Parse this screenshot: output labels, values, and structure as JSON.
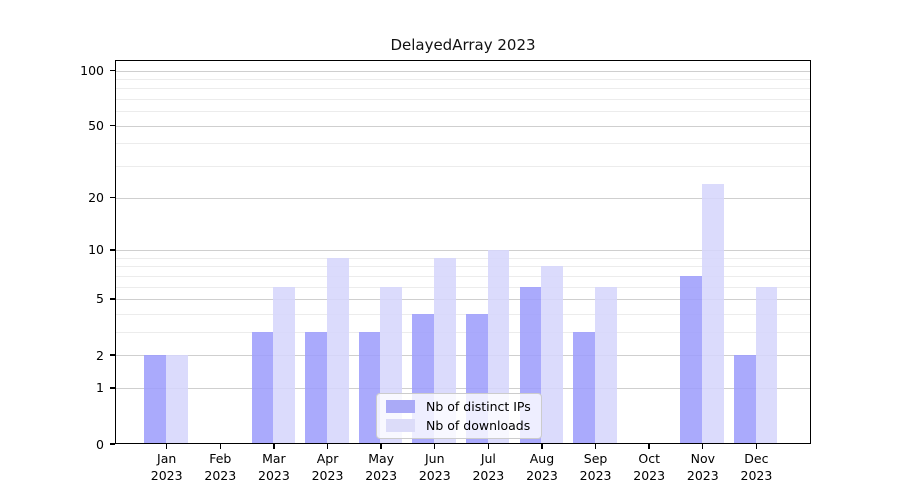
{
  "chart_data": {
    "type": "bar",
    "title": "DelayedArray 2023",
    "scale": "log1p",
    "categories": [
      "Jan",
      "Feb",
      "Mar",
      "Apr",
      "May",
      "Jun",
      "Jul",
      "Aug",
      "Sep",
      "Oct",
      "Nov",
      "Dec"
    ],
    "year_label": "2023",
    "series": [
      {
        "name": "Nb of distinct IPs",
        "values": [
          2,
          0,
          3,
          3,
          3,
          4,
          4,
          6,
          3,
          0,
          7,
          2
        ],
        "bar_color": "rgba(158,158,252,0.88)",
        "legend_color": "#aaaaf7"
      },
      {
        "name": "Nb of downloads",
        "values": [
          2,
          0,
          6,
          9,
          6,
          9,
          10,
          8,
          6,
          0,
          24,
          6
        ],
        "bar_color": "rgba(214,214,252,0.88)",
        "legend_color": "#dcdcf9"
      }
    ],
    "y_ticks": [
      0,
      1,
      2,
      5,
      10,
      20,
      50,
      100
    ],
    "y_minor_grid": [
      3,
      4,
      6,
      7,
      8,
      9,
      30,
      40,
      60,
      70,
      80,
      90
    ],
    "ylim": [
      0,
      114
    ],
    "grid": true,
    "legend_position": "lower center",
    "colors": {
      "grid_major": "#cfcfcf",
      "grid_minor": "#ececec",
      "axis": "#000000",
      "background": "#ffffff"
    }
  }
}
